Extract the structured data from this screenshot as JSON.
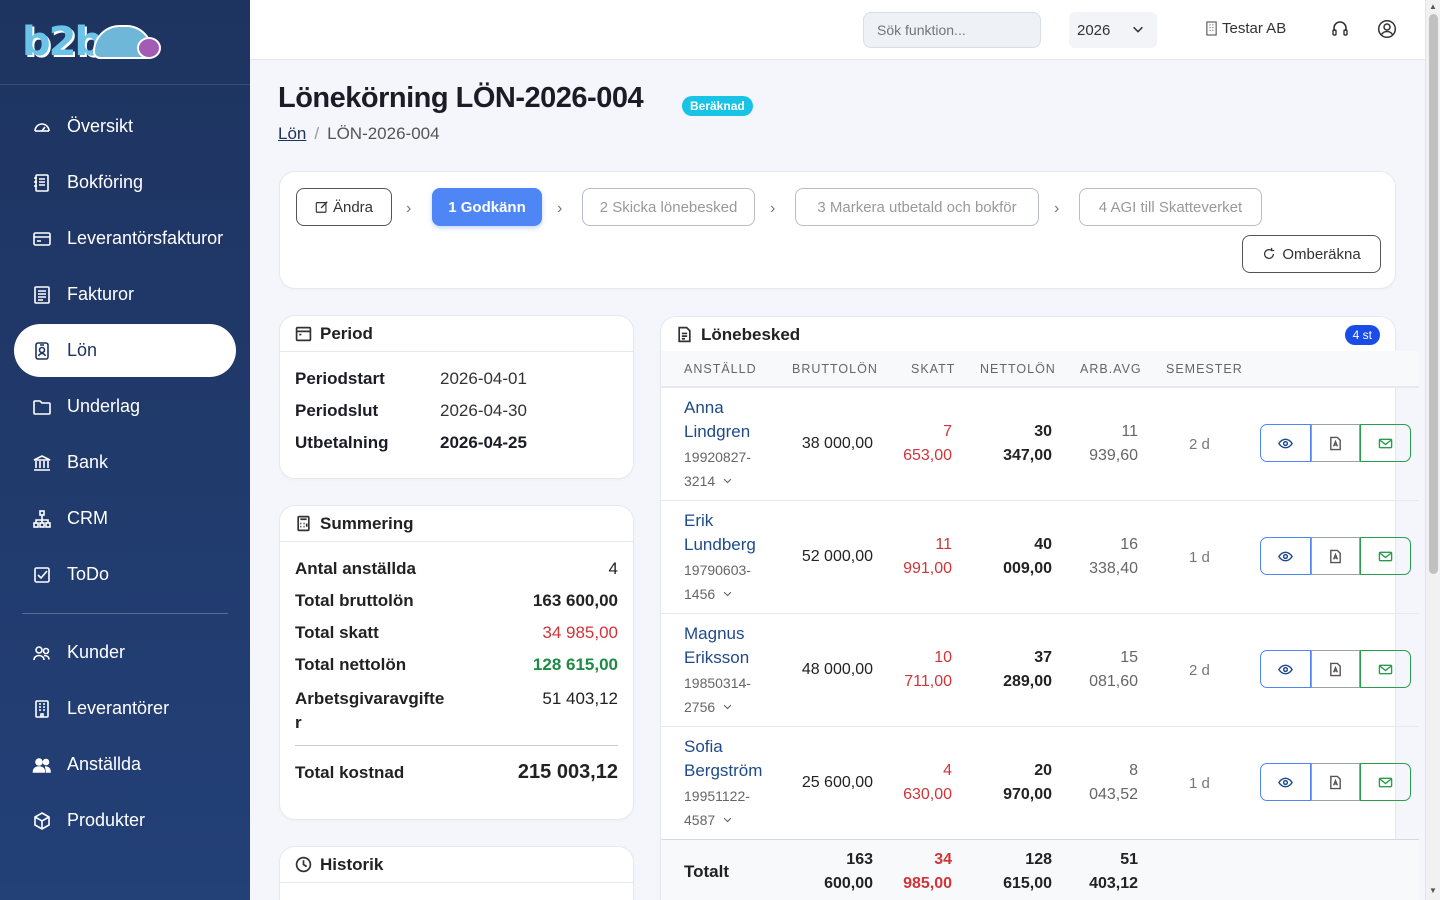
{
  "brand": {
    "logo_text": "b2b"
  },
  "sidebar": {
    "items": [
      {
        "label": "Översikt",
        "icon": "gauge-icon"
      },
      {
        "label": "Bokföring",
        "icon": "journal-icon"
      },
      {
        "label": "Leverantörsfakturor",
        "icon": "credit-card-icon"
      },
      {
        "label": "Fakturor",
        "icon": "invoice-icon"
      },
      {
        "label": "Lön",
        "icon": "person-badge-icon",
        "active": true
      },
      {
        "label": "Underlag",
        "icon": "folder-icon"
      },
      {
        "label": "Bank",
        "icon": "bank-icon"
      },
      {
        "label": "CRM",
        "icon": "diagram-icon"
      },
      {
        "label": "ToDo",
        "icon": "check-square-icon"
      }
    ],
    "items2": [
      {
        "label": "Kunder",
        "icon": "people-icon"
      },
      {
        "label": "Leverantörer",
        "icon": "building-icon"
      },
      {
        "label": "Anställda",
        "icon": "people-fill-icon"
      },
      {
        "label": "Produkter",
        "icon": "box-icon"
      }
    ]
  },
  "topbar": {
    "search_placeholder": "Sök funktion...",
    "year": "2026",
    "company": "Testar AB"
  },
  "header": {
    "title": "Lönekörning LÖN-2026-004",
    "status": "Beräknad",
    "breadcrumb_parent": "Lön",
    "breadcrumb_current": "LÖN-2026-004"
  },
  "workflow": {
    "edit": "Ändra",
    "step1": "1 Godkänn",
    "step2": "2 Skicka lönebesked",
    "step3": "3 Markera utbetald och bokför",
    "step4": "4 AGI till Skatteverket",
    "recalc": "Omberäkna"
  },
  "period": {
    "title": "Period",
    "start_label": "Periodstart",
    "start": "2026-04-01",
    "end_label": "Periodslut",
    "end": "2026-04-30",
    "pay_label": "Utbetalning",
    "pay": "2026-04-25"
  },
  "summary": {
    "title": "Summering",
    "count_label": "Antal anställda",
    "count": "4",
    "gross_label": "Total bruttolön",
    "gross": "163 600,00",
    "tax_label": "Total skatt",
    "tax": "34 985,00",
    "net_label": "Total nettolön",
    "net": "128 615,00",
    "employer_label_1": "Arbetsgivaravgifte",
    "employer_label_2": "r",
    "employer": "51 403,12",
    "cost_label": "Total kostnad",
    "cost": "215 003,12"
  },
  "history": {
    "title": "Historik"
  },
  "payslips": {
    "title": "Lönebesked",
    "count_badge": "4 st",
    "columns": [
      "ANSTÄLLD",
      "BRUTTOLÖN",
      "SKATT",
      "NETTOLÖN",
      "ARB.AVG",
      "SEMESTER"
    ],
    "rows": [
      {
        "first": "Anna",
        "last": "Lindgren",
        "pn1": "19920827-",
        "pn2": "3214",
        "gross": "38 000,00",
        "tax1": "7",
        "tax2": "653,00",
        "net1": "30",
        "net2": "347,00",
        "avg1": "11",
        "avg2": "939,60",
        "vac": "2 d"
      },
      {
        "first": "Erik",
        "last": "Lundberg",
        "pn1": "19790603-",
        "pn2": "1456",
        "gross": "52 000,00",
        "tax1": "11",
        "tax2": "991,00",
        "net1": "40",
        "net2": "009,00",
        "avg1": "16",
        "avg2": "338,40",
        "vac": "1 d"
      },
      {
        "first": "Magnus",
        "last": "Eriksson",
        "pn1": "19850314-",
        "pn2": "2756",
        "gross": "48 000,00",
        "tax1": "10",
        "tax2": "711,00",
        "net1": "37",
        "net2": "289,00",
        "avg1": "15",
        "avg2": "081,60",
        "vac": "2 d"
      },
      {
        "first": "Sofia",
        "last": "Bergström",
        "pn1": "19951122-",
        "pn2": "4587",
        "gross": "25 600,00",
        "tax1": "4",
        "tax2": "630,00",
        "net1": "20",
        "net2": "970,00",
        "avg1": "8",
        "avg2": "043,52",
        "vac": "1 d"
      }
    ],
    "total": {
      "label": "Totalt",
      "gross1": "163",
      "gross2": "600,00",
      "tax1": "34",
      "tax2": "985,00",
      "net1": "128",
      "net2": "615,00",
      "avg1": "51",
      "avg2": "403,12"
    }
  },
  "colors": {
    "sidebar": "#1e3460",
    "accent": "#4e86f5",
    "tax": "#d13438",
    "net": "#1e8a44",
    "status": "#19c3e6"
  }
}
